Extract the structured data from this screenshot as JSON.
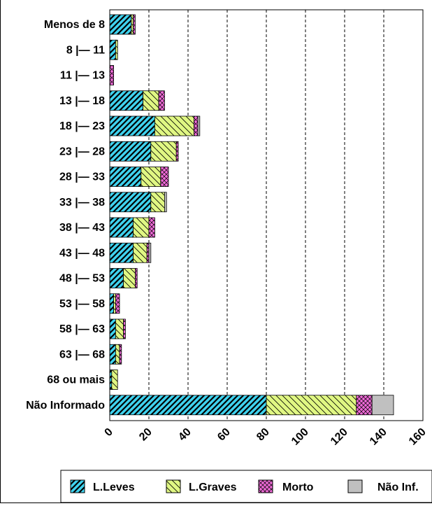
{
  "chart_data": {
    "type": "bar",
    "orientation": "horizontal",
    "stacked": true,
    "categories": [
      "Menos de 8",
      "8 |— 11",
      "11 |— 13",
      "13 |— 18",
      "18 |— 23",
      "23 |— 28",
      "28 |— 33",
      "33 |— 38",
      "38 |— 43",
      "43 |— 48",
      "48 |— 53",
      "53 |— 58",
      "58 |— 63",
      "63 |— 68",
      "68 ou mais",
      "Não Informado"
    ],
    "series": [
      {
        "name": "L.Leves",
        "color": "#3fd3ef",
        "pattern": "diagonal-hatch",
        "values": [
          11,
          3,
          0,
          17,
          23,
          21,
          16,
          21,
          12,
          12,
          7,
          2,
          3,
          3,
          1,
          80
        ]
      },
      {
        "name": "L.Graves",
        "color": "#e0f783",
        "pattern": "backslash-hatch",
        "values": [
          1,
          1,
          0,
          8,
          20,
          13,
          10,
          7,
          8,
          7,
          6,
          1,
          4,
          2,
          3,
          46
        ]
      },
      {
        "name": "Morto",
        "color": "#f06ad8",
        "pattern": "cross-hatch",
        "values": [
          1,
          0,
          2,
          3,
          2,
          1,
          4,
          0,
          3,
          1,
          1,
          2,
          1,
          1,
          0,
          8
        ]
      },
      {
        "name": "Não Inf.",
        "color": "#c0c0c0",
        "pattern": "solid",
        "values": [
          0,
          0,
          0,
          0,
          1,
          0,
          0,
          1,
          0,
          1,
          0,
          0,
          0,
          0,
          0,
          11
        ]
      }
    ],
    "xlim": [
      0,
      160
    ],
    "xticks": [
      0,
      20,
      40,
      60,
      80,
      100,
      120,
      140,
      160
    ],
    "grid": "vertical-dashed",
    "legend": "bottom"
  }
}
